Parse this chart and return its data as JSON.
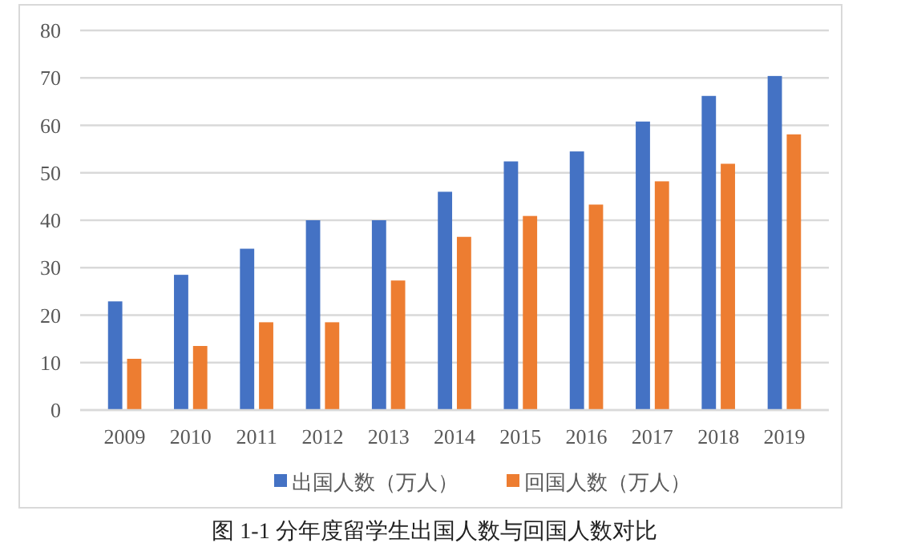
{
  "chart_data": {
    "type": "bar",
    "categories": [
      "2009",
      "2010",
      "2011",
      "2012",
      "2013",
      "2014",
      "2015",
      "2016",
      "2017",
      "2018",
      "2019"
    ],
    "series": [
      {
        "name": "出国人数（万人）",
        "color": "#4472c4",
        "values": [
          22.9,
          28.5,
          34,
          40,
          40,
          46,
          52.4,
          54.5,
          60.8,
          66.2,
          70.4
        ]
      },
      {
        "name": "回国人数（万人）",
        "color": "#ed7d31",
        "values": [
          10.8,
          13.5,
          18.5,
          18.5,
          27.3,
          36.5,
          40.9,
          43.3,
          48.2,
          51.9,
          58.1
        ]
      }
    ],
    "ylim": [
      0,
      80
    ],
    "yticks": [
      0,
      10,
      20,
      30,
      40,
      50,
      60,
      70,
      80
    ],
    "grid": "y",
    "legend": "bottom",
    "annotations": [
      "图 1-1 分年度留学生出国人数与回国人数对比"
    ]
  }
}
